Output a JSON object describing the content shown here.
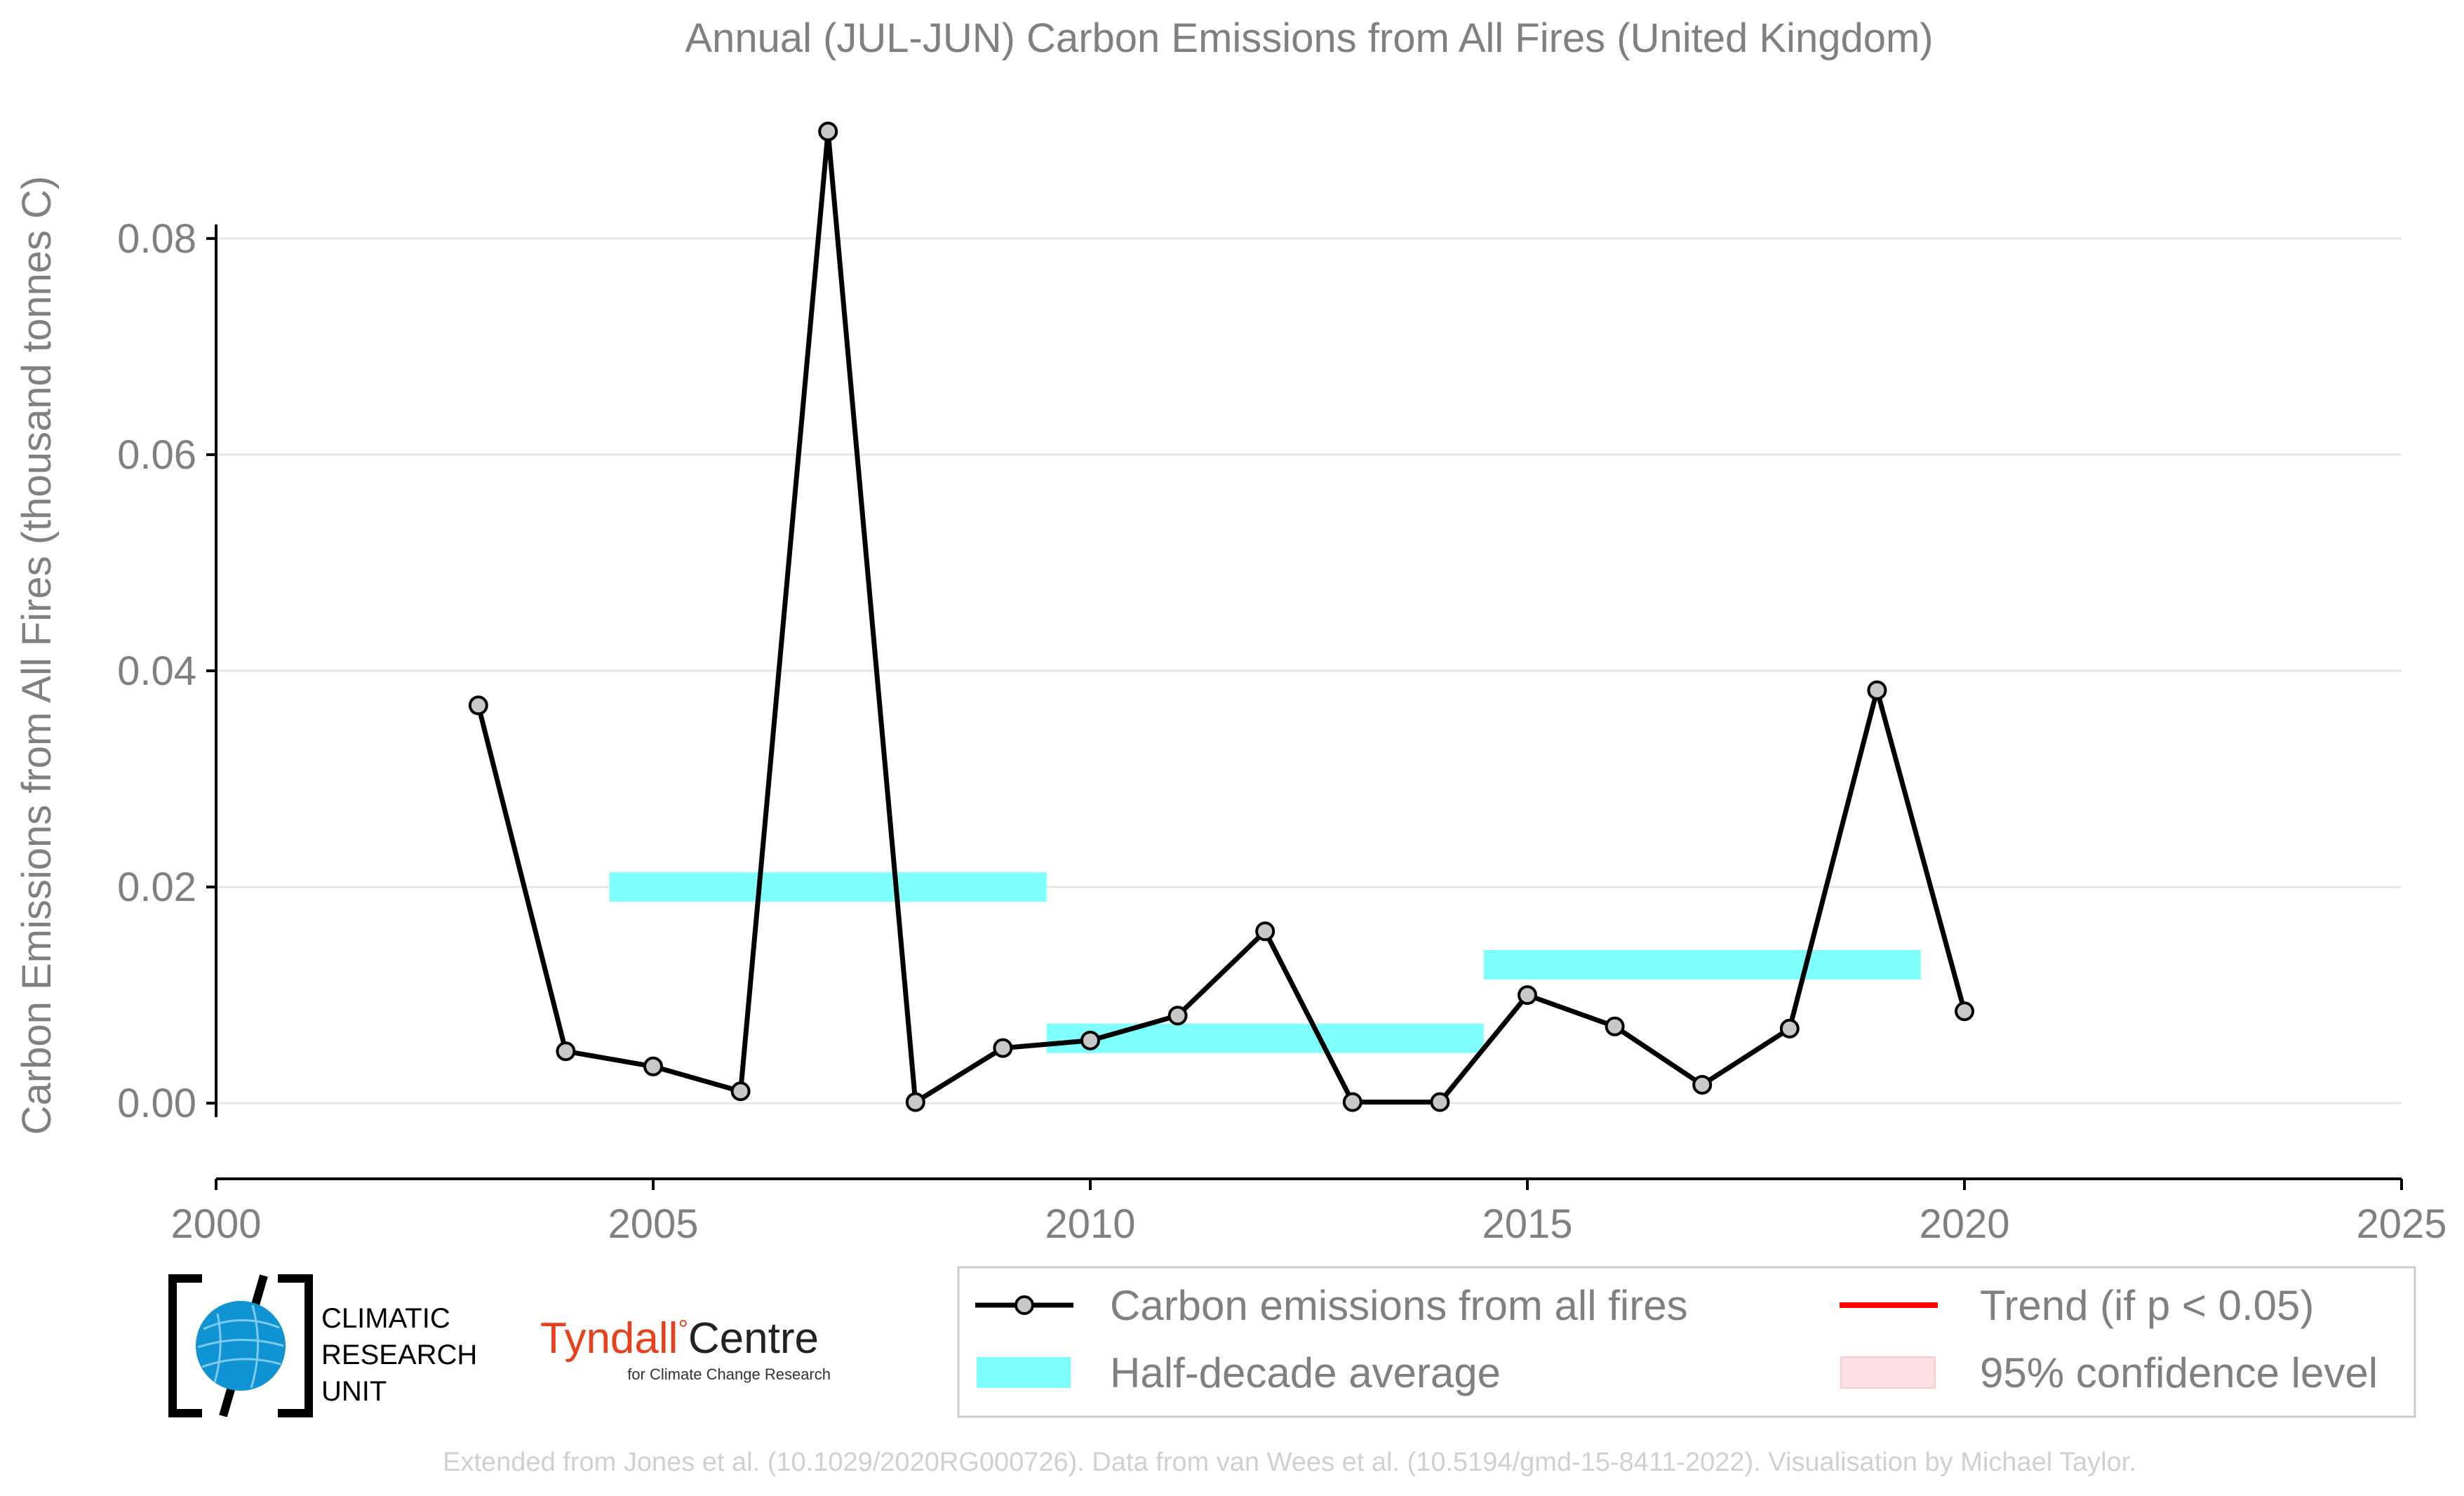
{
  "chart_data": {
    "type": "line",
    "title": "Annual (JUL-JUN) Carbon Emissions from All Fires (United Kingdom)",
    "ylabel": "Carbon Emissions from All Fires (thousand tonnes C)",
    "xlabel": "",
    "xlim": [
      2000,
      2025
    ],
    "ylim": [
      -0.007,
      0.092
    ],
    "xticks": [
      "2000",
      "2005",
      "2010",
      "2015",
      "2020",
      "2025"
    ],
    "yticks": [
      "0.00",
      "0.02",
      "0.04",
      "0.06",
      "0.08"
    ],
    "grid": "horizontal",
    "series": [
      {
        "name": "Carbon emissions from all fires",
        "color": "#000000",
        "marker_fill": "#c8c8c8",
        "x": [
          2003,
          2004,
          2005,
          2006,
          2007,
          2008,
          2009,
          2010,
          2011,
          2012,
          2013,
          2014,
          2015,
          2016,
          2017,
          2018,
          2019,
          2020
        ],
        "y": [
          0.0368,
          0.0048,
          0.0034,
          0.0011,
          0.0899,
          0.0001,
          0.0051,
          0.0058,
          0.0081,
          0.0159,
          0.0001,
          0.0001,
          0.01,
          0.0071,
          0.0017,
          0.0069,
          0.0382,
          0.0085
        ]
      }
    ],
    "half_decade_average": {
      "name": "Half-decade average",
      "color": "#80ffff",
      "segments": [
        {
          "x_start": 2004.5,
          "x_end": 2009.5,
          "value": 0.02
        },
        {
          "x_start": 2009.5,
          "x_end": 2014.5,
          "value": 0.006
        },
        {
          "x_start": 2014.5,
          "x_end": 2019.5,
          "value": 0.0128
        }
      ]
    },
    "legend": {
      "placement": "bottom-right",
      "items": [
        {
          "label": "Carbon emissions from all fires",
          "kind": "line-marker",
          "color": "#000000"
        },
        {
          "label": "Trend (if p < 0.05)",
          "kind": "line",
          "color": "#ff0000"
        },
        {
          "label": "Half-decade average",
          "kind": "patch",
          "color": "#80ffff"
        },
        {
          "label": "95% confidence level",
          "kind": "patch",
          "color": "#ffe0e4"
        }
      ]
    }
  },
  "logos": {
    "cru_text": [
      "CLIMATIC",
      "RESEARCH",
      "UNIT"
    ],
    "tyndall_main": "Tyndall",
    "tyndall_centre": "Centre",
    "tyndall_degree": "°",
    "tyndall_sub": "for Climate Change Research"
  },
  "credit": "Extended from Jones et al. (10.1029/2020RG000726). Data from van Wees et al. (10.5194/gmd-15-8411-2022). Visualisation by Michael Taylor."
}
